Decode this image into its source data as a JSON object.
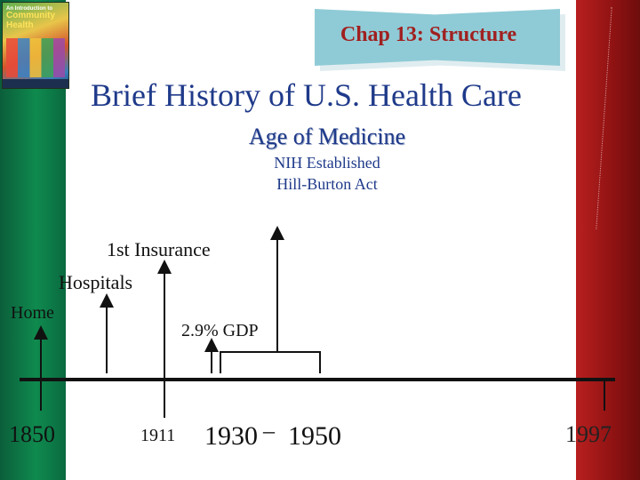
{
  "book": {
    "line1": "An Introduction to",
    "line2": "Community",
    "line3": "Health"
  },
  "banner": {
    "label": "Chap 13: Structure"
  },
  "slide": {
    "title": "Brief History of U.S. Health Care",
    "subtitle": "Age of Medicine",
    "notes": [
      "NIH Established",
      "Hill-Burton Act"
    ]
  },
  "timeline": {
    "events": {
      "insurance": "1st Insurance",
      "hospitals": "Hospitals",
      "home": "Home",
      "gdp": "2.9% GDP"
    },
    "years": {
      "y1850": "1850",
      "y1911": "1911",
      "y1930": "1930",
      "dash": "–",
      "y1950": "1950",
      "y1997": "1997"
    }
  },
  "colors": {
    "left_bar": "#0f8a4e",
    "right_bar": "#b81f1f",
    "banner": "#8fcbd6",
    "title": "#1f3a8a",
    "chap_text": "#a02020"
  }
}
